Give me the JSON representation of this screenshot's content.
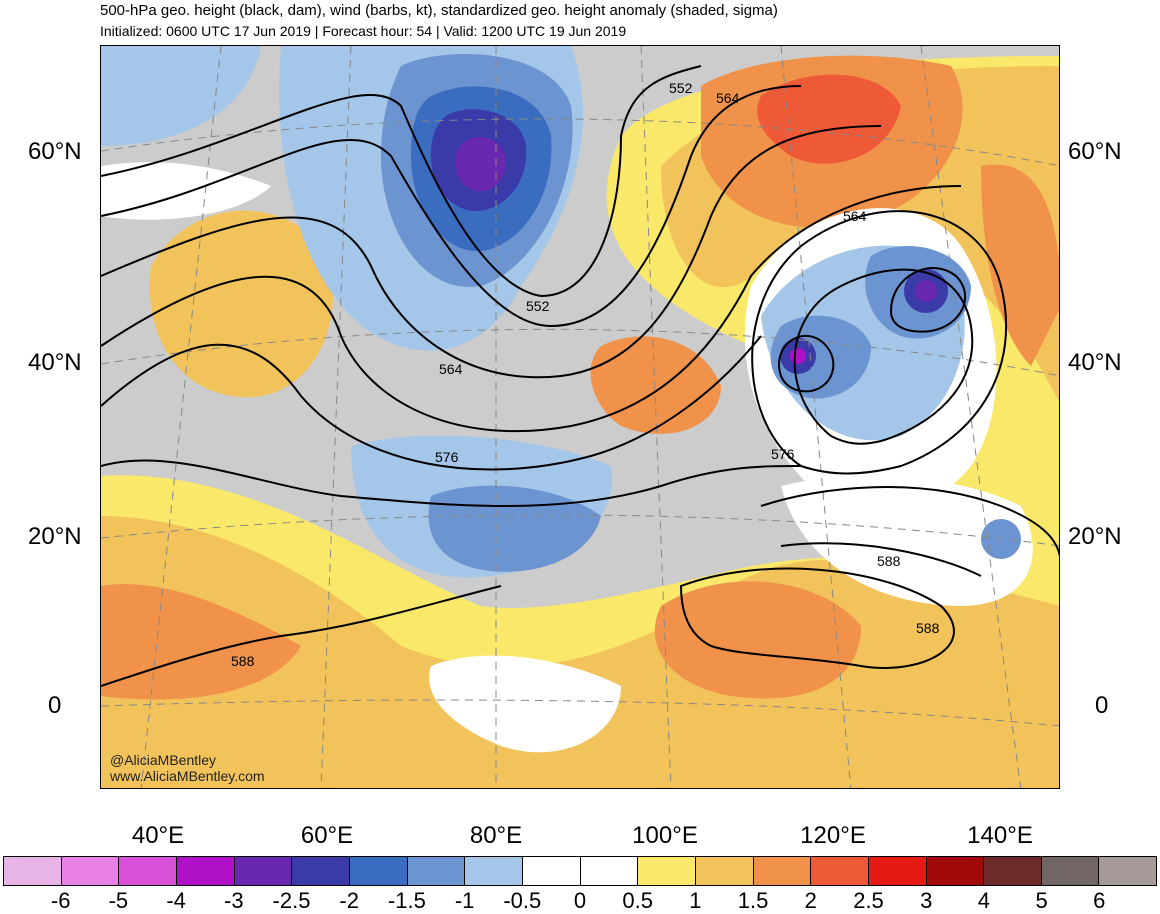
{
  "title": "500-hPa geo. height (black, dam), wind (barbs, kt), standardized geo. height anomaly (shaded, sigma)",
  "subtitle": "Initialized: 0600 UTC 17 Jun 2019 | Forecast hour: 54 | Valid: 1200 UTC 19 Jun 2019",
  "credit": {
    "twitter": "@AliciaMBentley",
    "website": "www.AliciaMBentley.com"
  },
  "axes": {
    "lat_labels": [
      "60°N",
      "40°N",
      "20°N",
      "0"
    ],
    "lon_labels": [
      "40°E",
      "60°E",
      "80°E",
      "100°E",
      "120°E",
      "140°E"
    ]
  },
  "contour_labels": [
    "552",
    "564",
    "564",
    "552",
    "564",
    "576",
    "576",
    "588",
    "588",
    "588"
  ],
  "colorbar": {
    "labels": [
      "-6",
      "-5",
      "-4",
      "-3",
      "-2.5",
      "-2",
      "-1.5",
      "-1",
      "-0.5",
      "0",
      "0.5",
      "1",
      "1.5",
      "2",
      "2.5",
      "3",
      "4",
      "5",
      "6"
    ],
    "colors": [
      "#e8b4e8",
      "#e880e8",
      "#d850d8",
      "#b010c8",
      "#6a28b0",
      "#3a3aa8",
      "#3a6cc0",
      "#6c94d0",
      "#a4c6e8",
      "#ffffff",
      "#ffffff",
      "#fae86a",
      "#f2c35a",
      "#f0924a",
      "#ee5a38",
      "#e61a14",
      "#a00a0a",
      "#6e2a28",
      "#726664",
      "#a69a98"
    ]
  }
}
